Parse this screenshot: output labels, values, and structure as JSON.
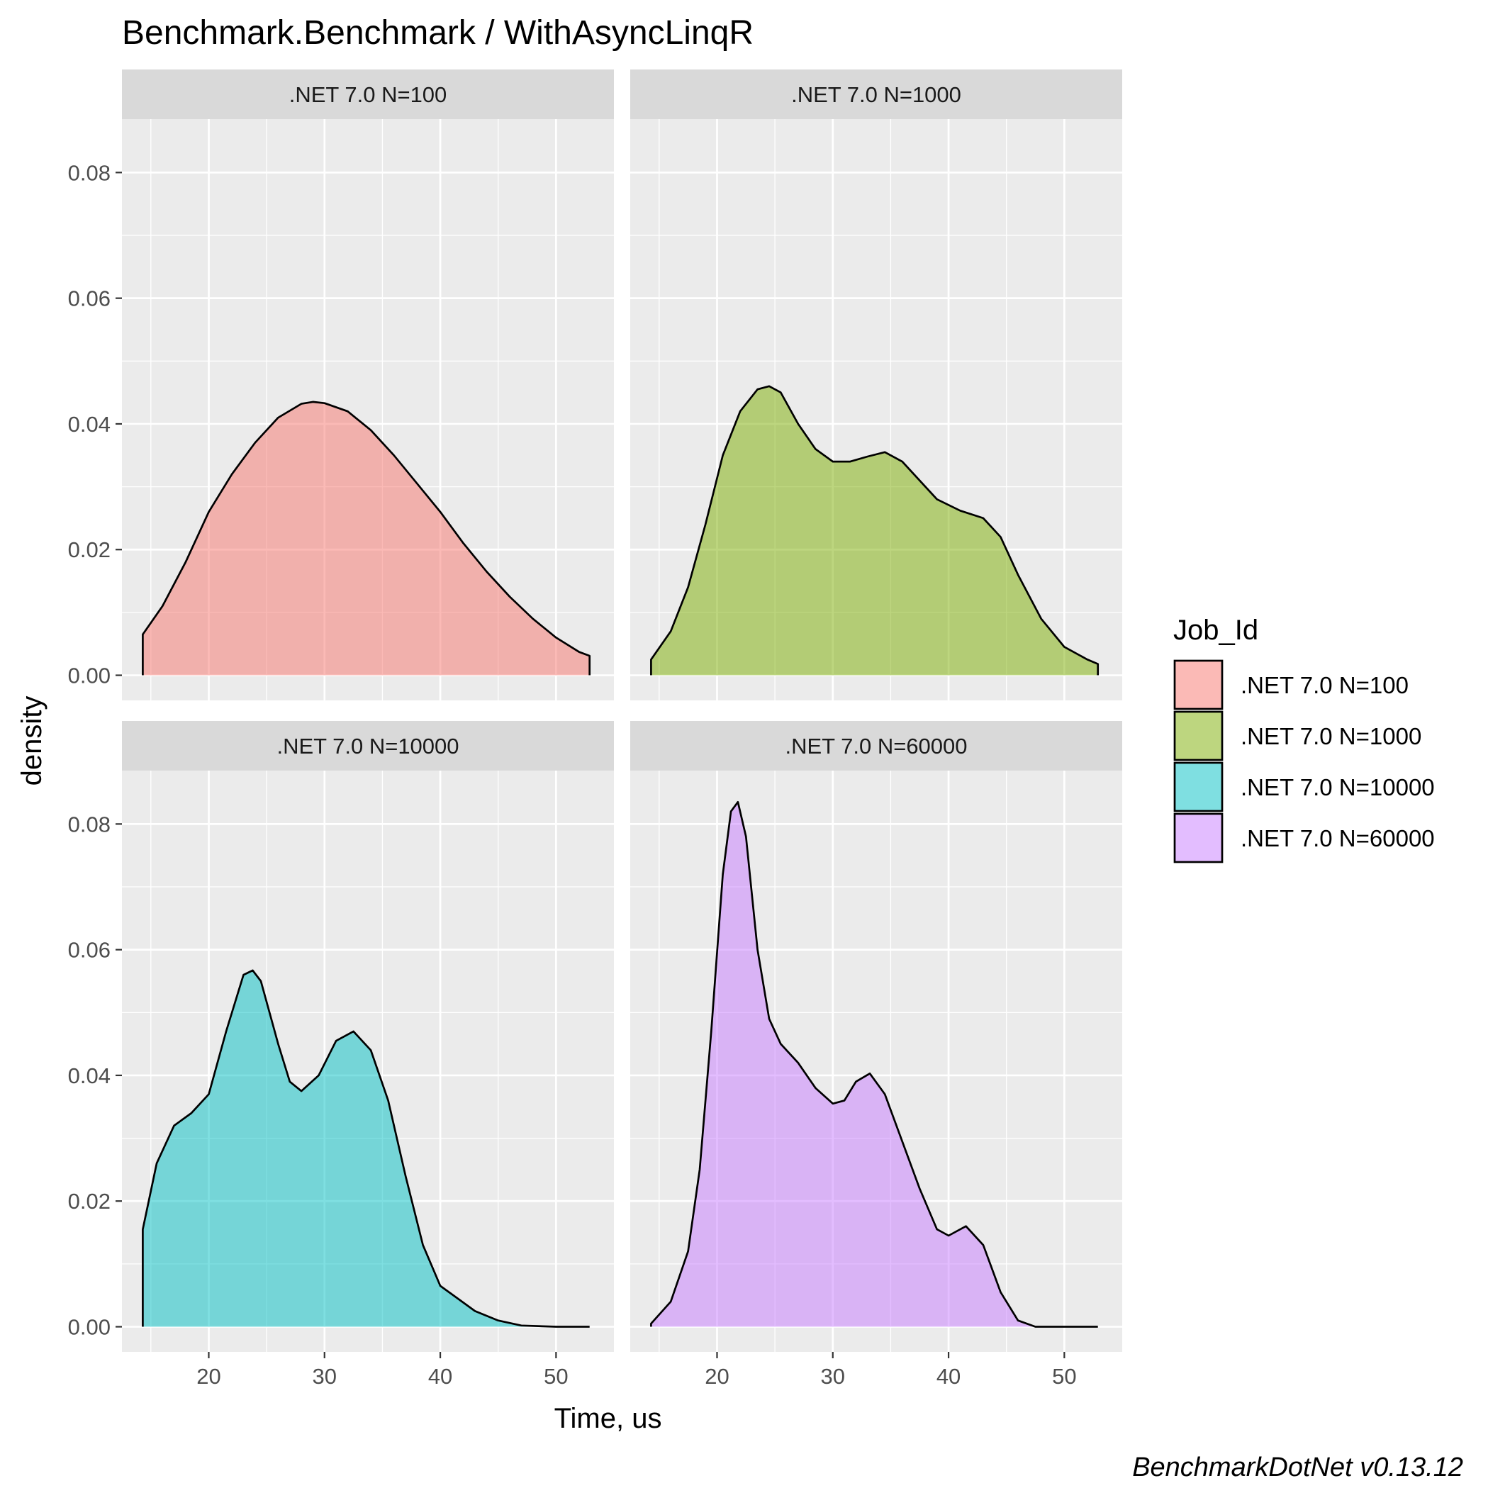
{
  "chart_data": {
    "type": "area",
    "subtype": "faceted density",
    "title": "Benchmark.Benchmark / WithAsyncLinqR",
    "xlabel": "Time, us",
    "ylabel": "density",
    "caption": "BenchmarkDotNet v0.13.12",
    "xlim": [
      12.5,
      55.0
    ],
    "ylim": [
      -0.004,
      0.0885
    ],
    "x_ticks": [
      20,
      30,
      40,
      50
    ],
    "y_ticks": [
      0.0,
      0.02,
      0.04,
      0.06,
      0.08
    ],
    "x_tick_labels": [
      "20",
      "30",
      "40",
      "50"
    ],
    "y_tick_labels": [
      "0.00",
      "0.02",
      "0.04",
      "0.06",
      "0.08"
    ],
    "grid": true,
    "legend": {
      "title": "Job_Id",
      "position": "right",
      "entries": [
        ".NET 7.0 N=100",
        ".NET 7.0 N=1000",
        ".NET 7.0 N=10000",
        ".NET 7.0 N=60000"
      ]
    },
    "facets": [
      {
        "name": ".NET 7.0 N=100",
        "color": "#F8766D",
        "x": [
          14.3,
          16,
          18,
          20,
          22,
          24,
          26,
          28,
          29,
          30,
          32,
          34,
          36,
          38,
          40,
          42,
          44,
          46,
          48,
          50,
          52,
          52.9
        ],
        "y": [
          0.0065,
          0.011,
          0.018,
          0.026,
          0.032,
          0.037,
          0.041,
          0.0432,
          0.0435,
          0.0433,
          0.042,
          0.039,
          0.035,
          0.0305,
          0.026,
          0.021,
          0.0165,
          0.0125,
          0.009,
          0.006,
          0.0037,
          0.0031
        ]
      },
      {
        "name": ".NET 7.0 N=1000",
        "color": "#7CAE00",
        "x": [
          14.3,
          16,
          17.5,
          19,
          20.5,
          22,
          23.5,
          24.5,
          25.5,
          27,
          28.5,
          30,
          31.5,
          33,
          34.5,
          36,
          37.5,
          39,
          41,
          43,
          44.5,
          46,
          48,
          50,
          52,
          52.9
        ],
        "y": [
          0.0025,
          0.007,
          0.014,
          0.024,
          0.035,
          0.042,
          0.0455,
          0.046,
          0.045,
          0.04,
          0.036,
          0.034,
          0.034,
          0.0348,
          0.0355,
          0.034,
          0.031,
          0.028,
          0.0262,
          0.025,
          0.022,
          0.016,
          0.009,
          0.0045,
          0.0025,
          0.0018
        ]
      },
      {
        "name": ".NET 7.0 N=10000",
        "color": "#00BFC4",
        "x": [
          14.3,
          15.5,
          17,
          18.5,
          20,
          21.5,
          23,
          23.8,
          24.5,
          26,
          27,
          28,
          29.5,
          31,
          32.5,
          34,
          35.5,
          37,
          38.5,
          40,
          41.5,
          43,
          45,
          47,
          50,
          52.9
        ],
        "y": [
          0.0155,
          0.026,
          0.032,
          0.034,
          0.037,
          0.047,
          0.056,
          0.0567,
          0.055,
          0.045,
          0.039,
          0.0375,
          0.04,
          0.0455,
          0.047,
          0.044,
          0.036,
          0.024,
          0.013,
          0.0065,
          0.0045,
          0.0025,
          0.001,
          0.0002,
          0.0,
          0.0
        ]
      },
      {
        "name": ".NET 7.0 N=60000",
        "color": "#C77CFF",
        "x": [
          14.3,
          16,
          17.5,
          18.5,
          19.5,
          20.5,
          21.2,
          21.8,
          22.5,
          23.5,
          24.5,
          25.5,
          27,
          28.5,
          30,
          31,
          32,
          33.2,
          34.5,
          36,
          37.5,
          39,
          40,
          41.5,
          43,
          44.5,
          46,
          47.5,
          50,
          52.9
        ],
        "y": [
          0.0005,
          0.004,
          0.012,
          0.025,
          0.047,
          0.072,
          0.082,
          0.0835,
          0.078,
          0.06,
          0.049,
          0.045,
          0.042,
          0.038,
          0.0355,
          0.036,
          0.039,
          0.0403,
          0.037,
          0.0295,
          0.022,
          0.0155,
          0.0145,
          0.016,
          0.013,
          0.0055,
          0.001,
          0.0,
          0.0,
          0.0
        ]
      }
    ]
  }
}
